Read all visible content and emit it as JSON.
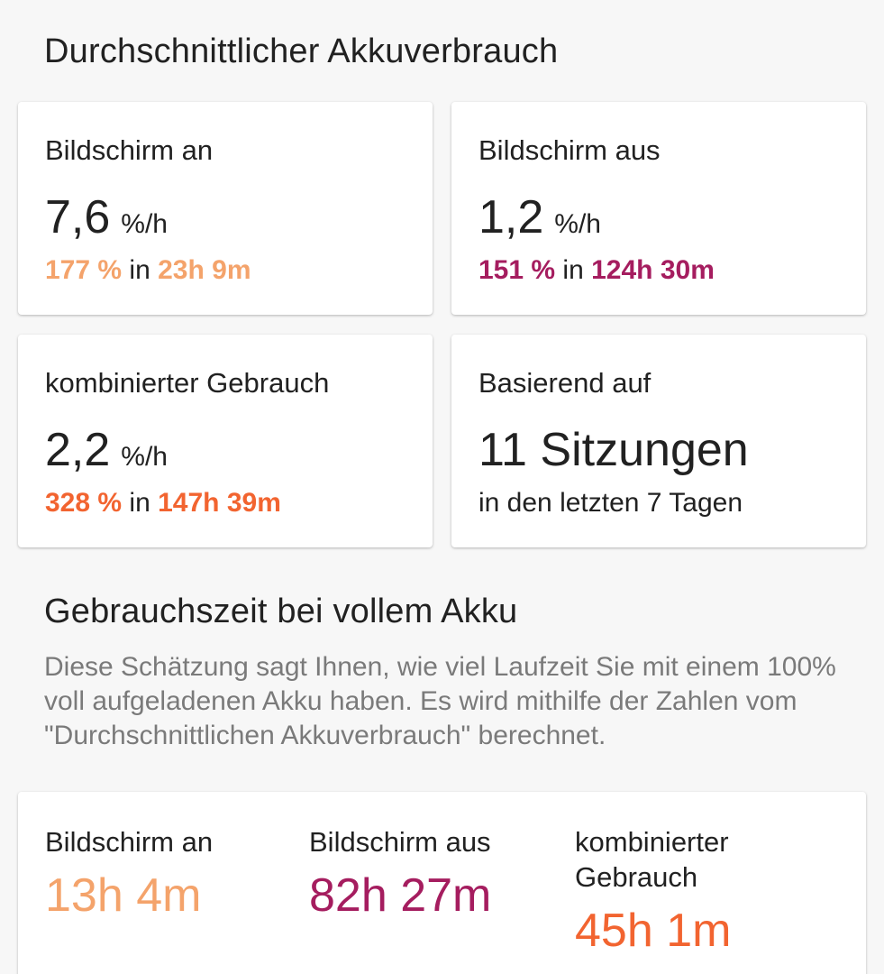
{
  "average_usage": {
    "title": "Durchschnittlicher Akkuverbrauch",
    "screen_on": {
      "label": "Bildschirm an",
      "rate_value": "7,6",
      "rate_unit": "%/h",
      "percent": "177 %",
      "in_word": "in",
      "duration": "23h 9m"
    },
    "screen_off": {
      "label": "Bildschirm aus",
      "rate_value": "1,2",
      "rate_unit": "%/h",
      "percent": "151 %",
      "in_word": "in",
      "duration": "124h 30m"
    },
    "combined": {
      "label": "kombinierter Gebrauch",
      "rate_value": "2,2",
      "rate_unit": "%/h",
      "percent": "328 %",
      "in_word": "in",
      "duration": "147h 39m"
    },
    "based_on": {
      "label": "Basierend auf",
      "sessions": "11 Sitzungen",
      "period": "in den letzten 7 Tagen"
    }
  },
  "full_charge": {
    "title": "Gebrauchszeit bei vollem Akku",
    "description": "Diese Schätzung sagt Ihnen, wie viel Laufzeit Sie mit einem 100% voll aufgeladenen Akku haben. Es wird mithilfe der Zahlen vom \"Durchschnittlichen Akkuverbrauch\" berechnet.",
    "screen_on": {
      "label": "Bildschirm an",
      "value": "13h 4m"
    },
    "screen_off": {
      "label": "Bildschirm aus",
      "value": "82h 27m"
    },
    "combined": {
      "label": "kombinierter Gebrauch",
      "value": "45h 1m"
    }
  },
  "colors": {
    "screen_on": "#f4a36b",
    "screen_off": "#a51d5f",
    "combined": "#f26430",
    "background": "#f7f7f7",
    "card": "#ffffff",
    "text_primary": "#212121",
    "text_secondary": "#7a7a7a"
  }
}
